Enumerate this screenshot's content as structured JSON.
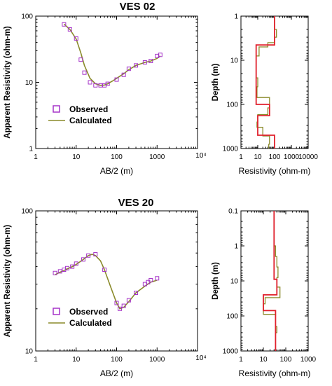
{
  "colors": {
    "observed": "#a533c8",
    "calculated": "#8a8a2a",
    "model_red": "#e0202c",
    "model_olive": "#8a8a2a"
  },
  "chart_data": [
    {
      "id": "ves02-curve",
      "type": "scatter",
      "title": "VES 02",
      "xlabel": "AB/2 (m)",
      "ylabel": "Apparent Resistivity (ohm-m)",
      "xscale": "log",
      "yscale": "log",
      "xlim": [
        1,
        10000
      ],
      "ylim": [
        1,
        100
      ],
      "xticks": [
        "1",
        "10",
        "100",
        "1000",
        "10⁴"
      ],
      "yticks": [
        "1",
        "10",
        "100"
      ],
      "legend": {
        "position": "bottom-left",
        "entries": [
          "Observed",
          "Calculated"
        ]
      },
      "series": [
        {
          "name": "Observed",
          "marker": "square",
          "x": [
            5,
            7,
            10,
            13,
            16,
            22,
            30,
            40,
            50,
            60,
            100,
            150,
            200,
            300,
            500,
            700,
            1000,
            1200
          ],
          "y": [
            75,
            63,
            46,
            22,
            14,
            10,
            9,
            9,
            9,
            9.5,
            11,
            13,
            16,
            18,
            20,
            21,
            25,
            26
          ]
        },
        {
          "name": "Calculated",
          "marker": "line",
          "x": [
            5,
            7,
            10,
            13,
            16,
            22,
            30,
            40,
            50,
            60,
            80,
            100,
            150,
            200,
            300,
            500,
            700,
            1000,
            1200
          ],
          "y": [
            76,
            63,
            45,
            28,
            18,
            11.5,
            9.5,
            9,
            9.1,
            9.5,
            10.5,
            11.5,
            13.5,
            15.5,
            18,
            20,
            21,
            23,
            25
          ]
        }
      ]
    },
    {
      "id": "ves02-model",
      "type": "line",
      "xlabel": "Resistivity (ohm-m)",
      "ylabel": "Depth (m)",
      "xscale": "log",
      "yscale": "log",
      "xlim": [
        1,
        10000
      ],
      "ylim": [
        1,
        1000
      ],
      "yreversed": true,
      "xticks": [
        "1",
        "10",
        "100",
        "1000",
        "10000"
      ],
      "yticks": [
        "1",
        "10",
        "100",
        "1000"
      ],
      "series": [
        {
          "style": "red",
          "x": [
            100,
            100,
            8,
            8,
            50,
            50,
            10,
            10,
            100,
            100
          ],
          "y": [
            1,
            4.5,
            4.5,
            100,
            100,
            180,
            180,
            500,
            500,
            1000
          ]
        },
        {
          "style": "olive",
          "x": [
            100,
            100,
            130,
            130,
            100,
            100,
            40,
            40,
            12,
            12,
            8,
            8,
            10,
            10,
            9,
            9,
            50,
            50,
            40,
            40,
            10,
            10,
            9,
            9,
            20,
            20,
            50,
            50,
            45,
            45
          ],
          "y": [
            1,
            2,
            2,
            3,
            3,
            4,
            4,
            5,
            5,
            8,
            8,
            25,
            25,
            40,
            40,
            70,
            70,
            120,
            120,
            170,
            170,
            250,
            250,
            330,
            330,
            520,
            520,
            800,
            800,
            1000
          ]
        }
      ]
    },
    {
      "id": "ves20-curve",
      "type": "scatter",
      "title": "VES 20",
      "xlabel": "AB/2 (m)",
      "ylabel": "Apparent Resistivity (ohm-m)",
      "xscale": "log",
      "yscale": "log",
      "xlim": [
        1,
        10000
      ],
      "ylim": [
        10,
        100
      ],
      "xticks": [
        "1",
        "10",
        "100",
        "1000",
        "10⁴"
      ],
      "yticks": [
        "10",
        "100"
      ],
      "legend": {
        "position": "bottom-left",
        "entries": [
          "Observed",
          "Calculated"
        ]
      },
      "series": [
        {
          "name": "Observed",
          "marker": "square",
          "x": [
            3,
            4,
            5,
            6,
            8,
            10,
            15,
            20,
            30,
            50,
            100,
            120,
            150,
            200,
            300,
            500,
            600,
            700,
            1000
          ],
          "y": [
            36,
            37,
            38,
            39,
            40,
            42,
            45,
            48,
            49,
            38,
            22,
            20,
            21,
            23,
            26,
            30,
            31,
            32,
            33
          ]
        },
        {
          "name": "Calculated",
          "marker": "line",
          "x": [
            3,
            4,
            5,
            6,
            8,
            10,
            15,
            20,
            25,
            30,
            40,
            50,
            70,
            100,
            120,
            150,
            200,
            300,
            500,
            700,
            1000
          ],
          "y": [
            35,
            36.5,
            37.5,
            38.5,
            40,
            41.5,
            45,
            48,
            49,
            48,
            44,
            38,
            29,
            22,
            20,
            20.5,
            22.5,
            26,
            29,
            31,
            32
          ]
        }
      ]
    },
    {
      "id": "ves20-model",
      "type": "line",
      "xlabel": "Resistivity (ohm-m)",
      "ylabel": "Depth (m)",
      "xscale": "log",
      "yscale": "log",
      "xlim": [
        1,
        1000
      ],
      "ylim": [
        0.1,
        1000
      ],
      "yreversed": true,
      "xticks": [
        "1",
        "10",
        "100",
        "1000"
      ],
      "yticks": [
        "0.1",
        "1",
        "10",
        "100",
        "1000"
      ],
      "series": [
        {
          "style": "red",
          "x": [
            30,
            30,
            40,
            40,
            10,
            10,
            35,
            35
          ],
          "y": [
            0.1,
            9,
            9,
            25,
            25,
            70,
            70,
            1000
          ]
        },
        {
          "style": "olive",
          "x": [
            30,
            30,
            35,
            35,
            40,
            40,
            45,
            45,
            40,
            40,
            55,
            55,
            12,
            12,
            10,
            10,
            35,
            35,
            40,
            40,
            35,
            35
          ],
          "y": [
            0.1,
            1,
            1,
            2,
            2,
            4,
            4,
            8,
            8,
            15,
            15,
            30,
            30,
            45,
            45,
            90,
            90,
            200,
            200,
            300,
            300,
            1000
          ]
        }
      ]
    }
  ]
}
